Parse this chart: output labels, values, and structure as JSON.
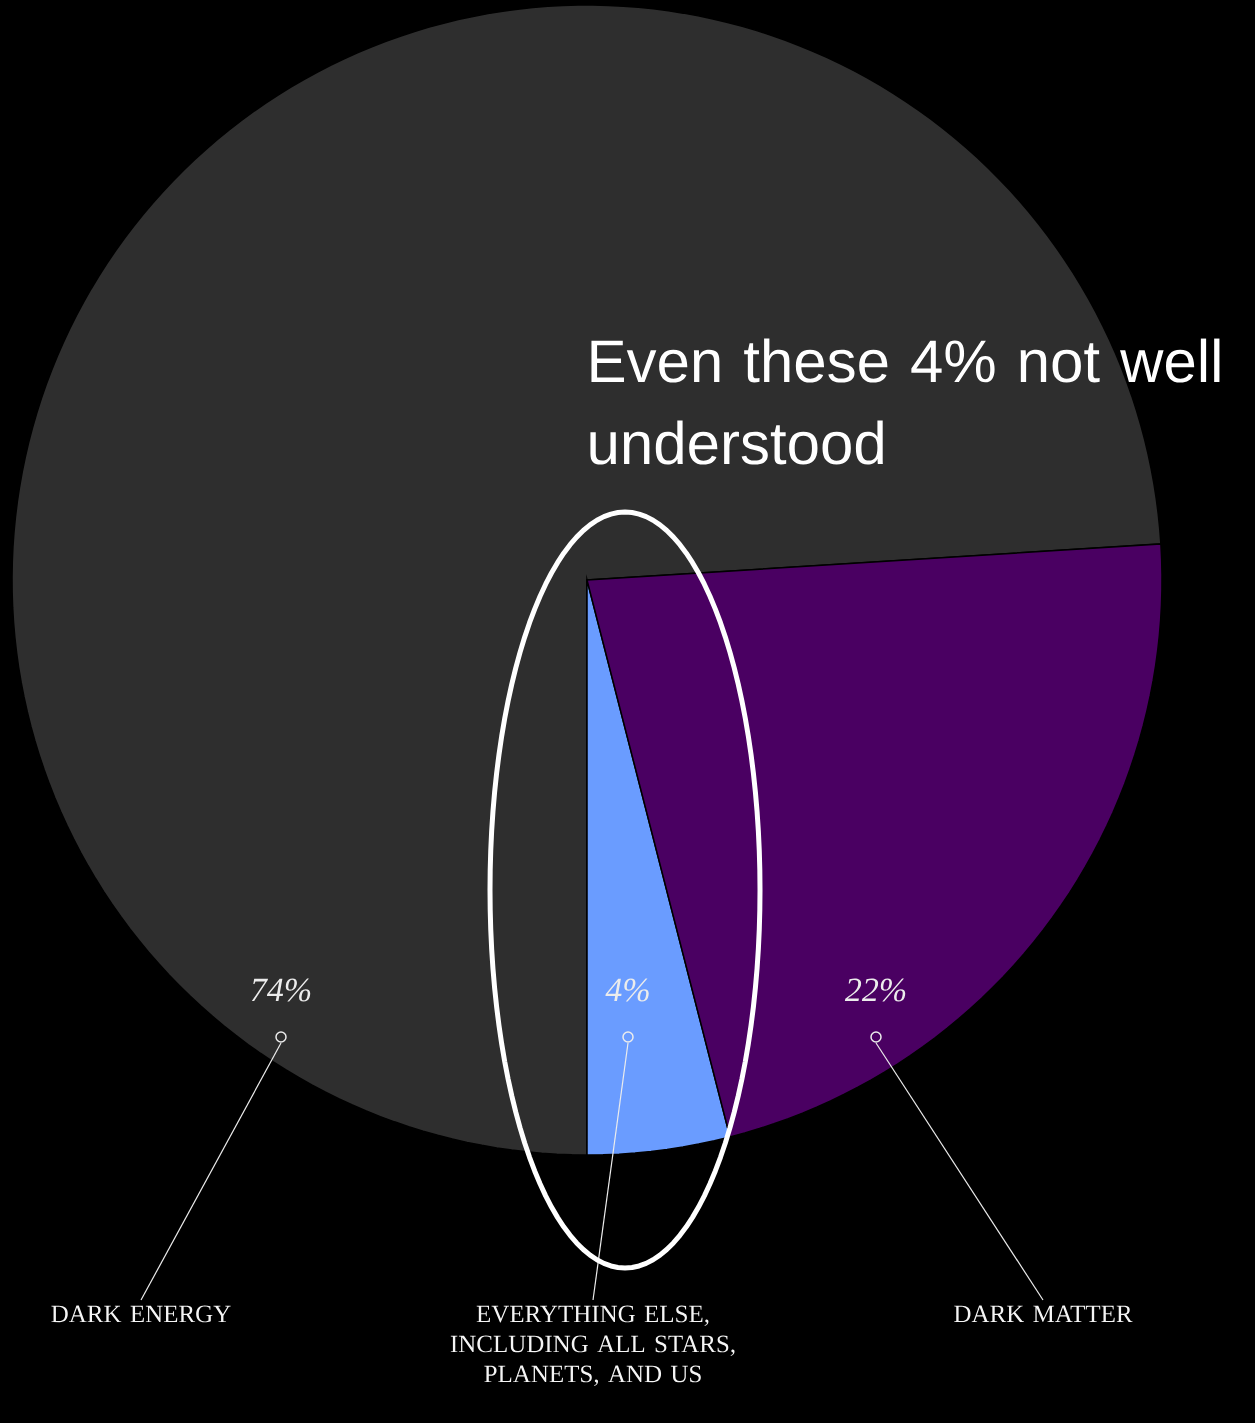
{
  "chart_data": {
    "type": "pie",
    "categories": [
      "DARK ENERGY",
      "EVERYTHING ELSE, INCLUDING ALL STARS, PLANETS, AND US",
      "DARK MATTER"
    ],
    "values": [
      74,
      4,
      22
    ],
    "colors": [
      "#2e2e2e",
      "#6a9cff",
      "#4a0062"
    ],
    "value_labels": [
      "74%",
      "4%",
      "22%"
    ],
    "annotations": [
      "Even these 4% not well understood"
    ]
  }
}
